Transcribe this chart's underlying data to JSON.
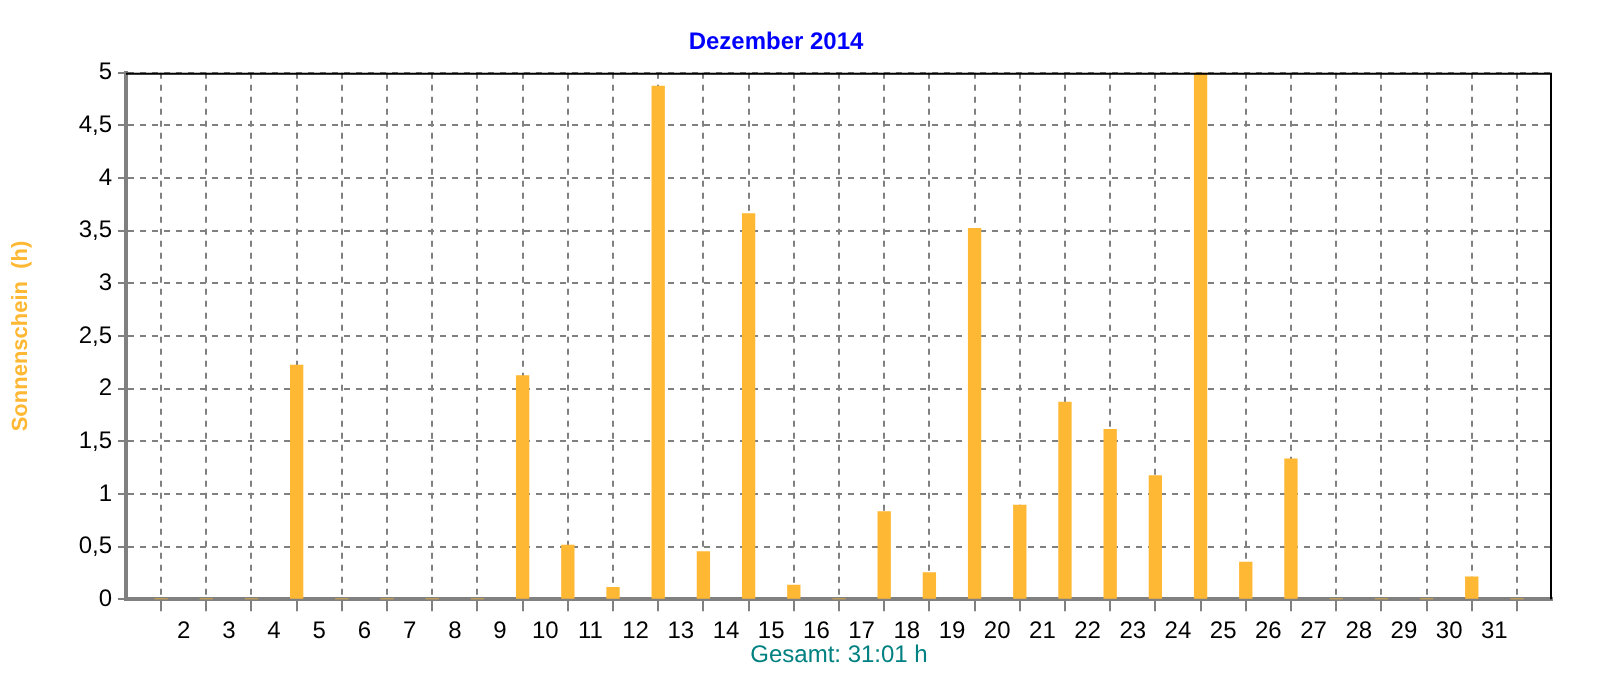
{
  "chart_data": {
    "type": "bar",
    "title": "Dezember 2014",
    "ylabel": "Sonnenschein  (h)",
    "annotations": [
      "Gesamt: 31:01 h"
    ],
    "x": [
      1.5,
      2.5,
      3.5,
      4.5,
      5.5,
      6.5,
      7.5,
      8.5,
      9.5,
      10.5,
      11.5,
      12.5,
      13.5,
      14.5,
      15.5,
      16.5,
      17.5,
      18.5,
      19.5,
      20.5,
      21.5,
      22.5,
      23.5,
      24.5,
      25.5,
      26.5,
      27.5,
      28.5,
      29.5,
      30.5,
      31.5
    ],
    "values": [
      0,
      0,
      0,
      2.22,
      0,
      0,
      0,
      0,
      2.12,
      0.51,
      0.11,
      4.87,
      0.45,
      3.66,
      0.13,
      0,
      0.83,
      0.25,
      3.52,
      0.89,
      1.87,
      1.61,
      1.17,
      5,
      0.35,
      1.33,
      0,
      0,
      0,
      0.21,
      0
    ],
    "color": "#ffb833",
    "xlim": [
      1.25,
      31.75
    ],
    "xticks": [
      2,
      3,
      4,
      5,
      6,
      7,
      8,
      9,
      10,
      11,
      12,
      13,
      14,
      15,
      16,
      17,
      18,
      19,
      20,
      21,
      22,
      23,
      24,
      25,
      26,
      27,
      28,
      29,
      30,
      31
    ],
    "ylim": [
      0,
      5
    ],
    "yticks": [
      0,
      {
        "value": 0.5,
        "label": "0,5"
      },
      1,
      {
        "value": 1.5,
        "label": "1,5"
      },
      2,
      {
        "value": 2.5,
        "label": "2,5"
      },
      3,
      {
        "value": 3.5,
        "label": "3,5"
      },
      4,
      {
        "value": 4.5,
        "label": "4,5"
      },
      5
    ],
    "grid": true,
    "legend": false
  }
}
